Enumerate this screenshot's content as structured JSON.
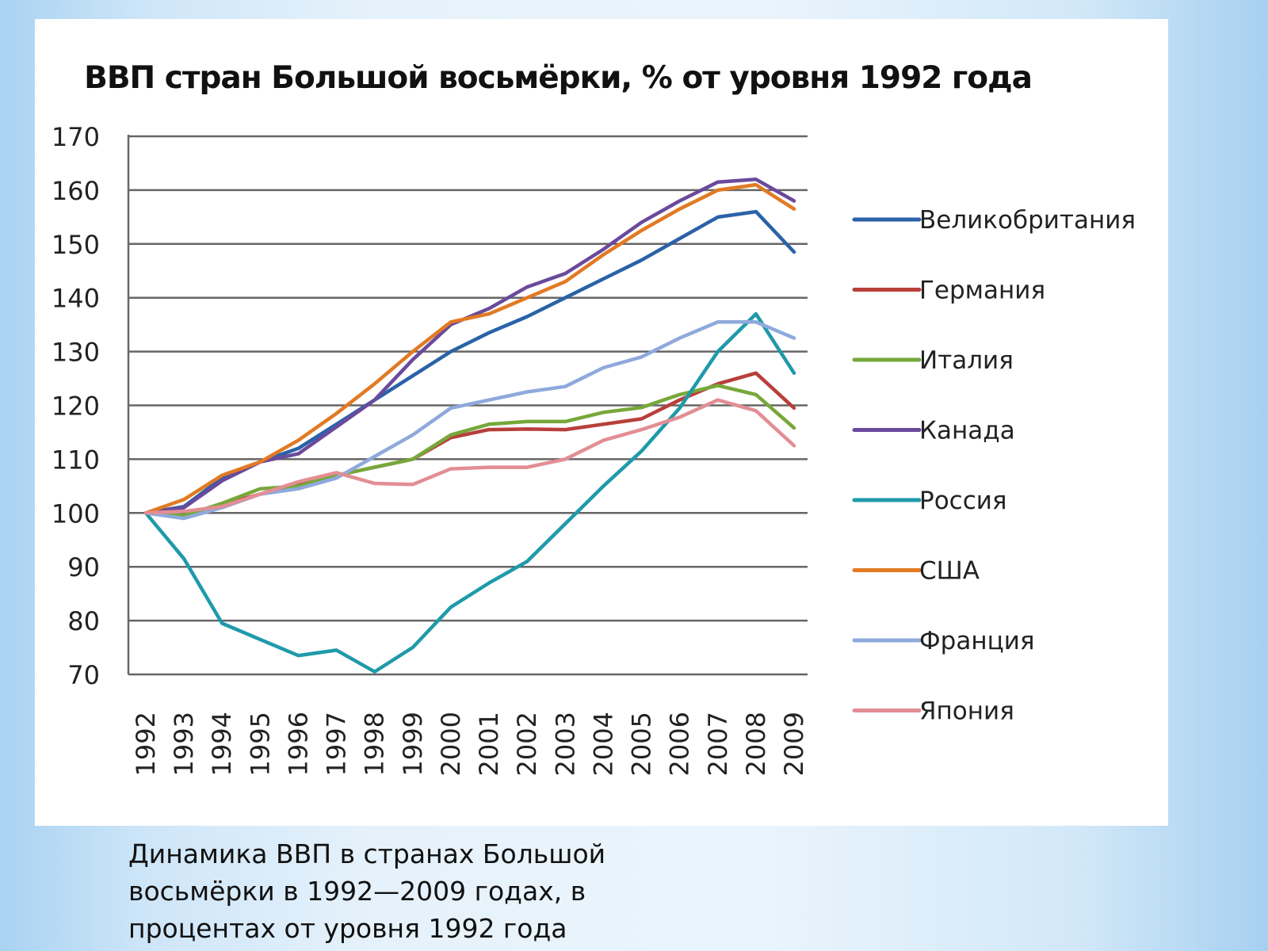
{
  "chart_data": {
    "type": "line",
    "title": "ВВП стран Большой восьмёрки, % от уровня 1992 года",
    "xlabel": "",
    "ylabel": "",
    "ylim": [
      70,
      170
    ],
    "yticks": [
      70,
      80,
      90,
      100,
      110,
      120,
      130,
      140,
      150,
      160,
      170
    ],
    "grid": true,
    "legend_position": "right",
    "x": [
      "1992",
      "1993",
      "1994",
      "1995",
      "1996",
      "1997",
      "1998",
      "1999",
      "2000",
      "2001",
      "2002",
      "2003",
      "2004",
      "2005",
      "2006",
      "2007",
      "2008",
      "2009"
    ],
    "series": [
      {
        "name": "Великобритания",
        "color": "#2a62a8",
        "values": [
          100,
          101.2,
          106.5,
          109.5,
          112,
          116.5,
          121,
          125.5,
          130,
          133.5,
          136.5,
          140,
          143.5,
          147,
          151,
          155,
          156,
          148.5
        ]
      },
      {
        "name": "Германия",
        "color": "#b73f3a",
        "values": [
          100,
          99.3,
          101.6,
          103.5,
          105.5,
          107,
          108.5,
          110,
          114,
          115.5,
          115.6,
          115.5,
          116.5,
          117.5,
          121,
          124,
          126,
          119.5
        ]
      },
      {
        "name": "Италия",
        "color": "#76a83a",
        "values": [
          100,
          99.5,
          101.8,
          104.5,
          105,
          107,
          108.5,
          110,
          114.5,
          116.5,
          117,
          117,
          118.7,
          119.6,
          122,
          123.7,
          122,
          115.8
        ]
      },
      {
        "name": "Канада",
        "color": "#6a4a9c",
        "values": [
          100,
          101,
          106,
          109.5,
          111,
          116,
          121,
          128.5,
          135,
          138,
          142,
          144.5,
          149,
          154,
          158,
          161.5,
          162,
          158
        ]
      },
      {
        "name": "Россия",
        "color": "#1f9aaa",
        "values": [
          100,
          91.5,
          79.5,
          76.5,
          73.5,
          74.5,
          70.5,
          75,
          82.5,
          87,
          91,
          98,
          105,
          111.5,
          119.5,
          130,
          137,
          126
        ]
      },
      {
        "name": "США",
        "color": "#e27a23",
        "values": [
          100,
          102.5,
          107,
          109.5,
          113.5,
          118.5,
          124,
          130,
          135.5,
          137,
          140,
          143,
          148,
          152.5,
          156.5,
          160,
          161,
          156.5
        ]
      },
      {
        "name": "Франция",
        "color": "#8fa9dc",
        "values": [
          100,
          99,
          101,
          103.5,
          104.5,
          106.5,
          110.5,
          114.5,
          119.5,
          121,
          122.5,
          123.5,
          127,
          129,
          132.5,
          135.5,
          135.5,
          132.5
        ]
      },
      {
        "name": "Япония",
        "color": "#e28e94",
        "values": [
          100,
          100.3,
          101.2,
          103.5,
          105.8,
          107.5,
          105.5,
          105.3,
          108.2,
          108.5,
          108.5,
          110,
          113.5,
          115.5,
          117.8,
          121,
          119,
          112.5
        ]
      }
    ]
  },
  "caption": "Динамика ВВП в странах Большой восьмёрки в 1992—2009 годах, в процентах от уровня 1992 года"
}
